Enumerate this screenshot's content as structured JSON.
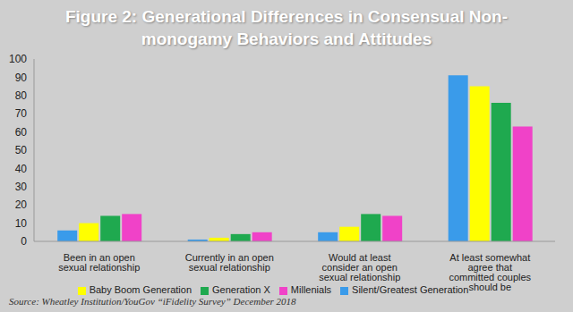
{
  "chart_data": {
    "type": "bar",
    "title": "Figure 2: Generational Differences in Consensual Non-monogamy Behaviors and Attitudes",
    "source": "Source: Wheatley Institution/YouGov “iFidelity Survey” December 2018",
    "categories": [
      "Been in an open sexual relationship",
      "Currently in an open sexual relationship",
      "Would at least consider an open sexual relationship",
      "At least somewhat agree that committed couples should be monogamous"
    ],
    "series": [
      {
        "name": "Silent/Greatest Generation",
        "color": "#3a9bea",
        "values": [
          6,
          1,
          5,
          91
        ]
      },
      {
        "name": "Baby Boom Generation",
        "color": "#ffff00",
        "values": [
          10,
          2,
          8,
          85
        ]
      },
      {
        "name": "Generation X",
        "color": "#1fa94f",
        "values": [
          14,
          4,
          15,
          76
        ]
      },
      {
        "name": "Millenials",
        "color": "#f042c8",
        "values": [
          15,
          5,
          14,
          63
        ]
      }
    ],
    "ylim": [
      0,
      100
    ],
    "yticks": [
      0,
      10,
      20,
      30,
      40,
      50,
      60,
      70,
      80,
      90,
      100
    ],
    "grid": false,
    "legend": "bottom"
  }
}
